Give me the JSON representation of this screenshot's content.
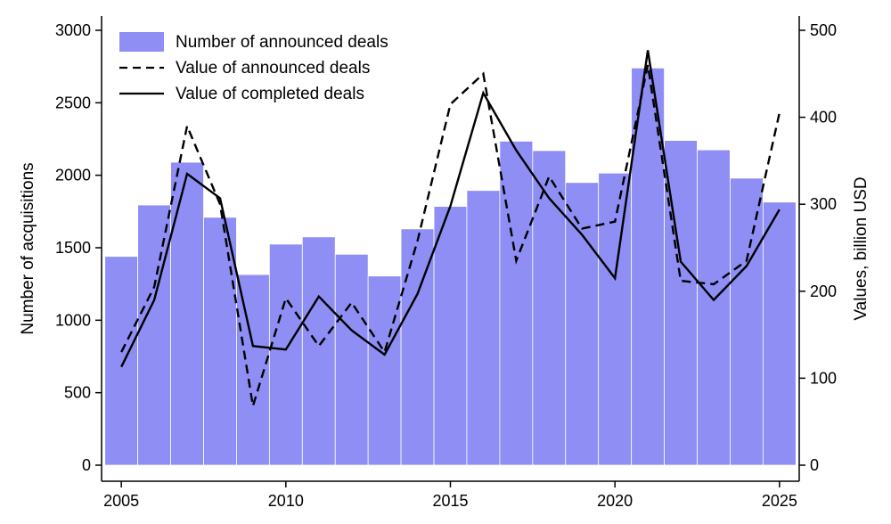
{
  "chart_data": {
    "type": "bar",
    "x": [
      2005,
      2006,
      2007,
      2008,
      2009,
      2010,
      2011,
      2012,
      2013,
      2014,
      2015,
      2016,
      2017,
      2018,
      2019,
      2020,
      2021,
      2022,
      2023,
      2024,
      2025
    ],
    "series": [
      {
        "name": "Number of announced deals",
        "type": "bar",
        "axis": "left",
        "color": "#8e8ef5",
        "values": [
          1440,
          1795,
          2090,
          1710,
          1315,
          1525,
          1575,
          1455,
          1305,
          1630,
          1785,
          1895,
          2235,
          2170,
          1950,
          2015,
          2740,
          2240,
          2175,
          1980,
          1815
        ]
      },
      {
        "name": "Value of announced deals",
        "type": "line",
        "axis": "right",
        "style": "dashed",
        "color": "#000000",
        "values": [
          130,
          205,
          390,
          300,
          68,
          192,
          137,
          187,
          130,
          258,
          415,
          450,
          235,
          332,
          272,
          280,
          460,
          212,
          208,
          235,
          405
        ]
      },
      {
        "name": "Value of completed deals",
        "type": "line",
        "axis": "right",
        "style": "solid",
        "color": "#000000",
        "values": [
          113,
          190,
          335,
          307,
          137,
          133,
          194,
          155,
          127,
          197,
          298,
          428,
          362,
          307,
          265,
          215,
          477,
          234,
          190,
          229,
          294
        ]
      }
    ],
    "xlim": [
      2004.4,
      2025.6
    ],
    "xticks": [
      "2005",
      "2010",
      "2015",
      "2020",
      "2025"
    ],
    "ylabel": "Number of acquisitions",
    "ylim": [
      0,
      3000
    ],
    "yticks": [
      "0",
      "500",
      "1000",
      "1500",
      "2000",
      "2500",
      "3000"
    ],
    "y2label": "Values, billion USD",
    "y2lim": [
      0,
      500
    ],
    "y2ticks": [
      "0",
      "100",
      "200",
      "300",
      "400",
      "500"
    ],
    "legend_position": "top-left",
    "grid": false
  }
}
